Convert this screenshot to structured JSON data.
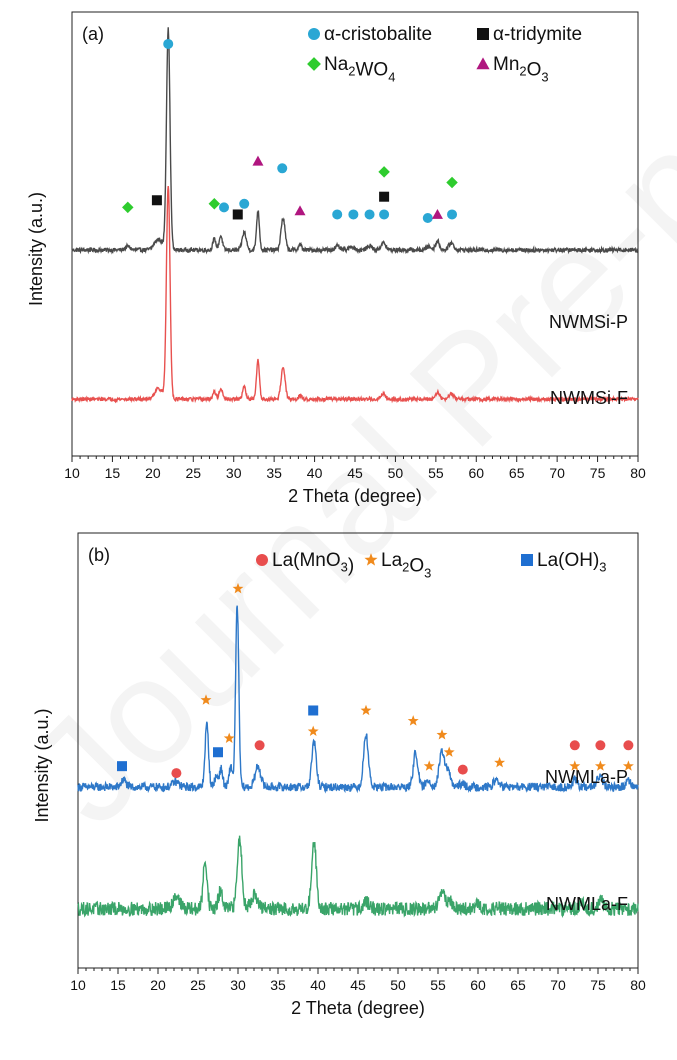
{
  "watermark": "Journal Pre-proofs",
  "chart_data": [
    {
      "type": "line",
      "panel_label": "(a)",
      "xlabel": "2 Theta (degree)",
      "ylabel": "Intensity (a.u.)",
      "xlim": [
        10,
        80
      ],
      "x_ticks": [
        10,
        15,
        20,
        25,
        30,
        35,
        40,
        45,
        50,
        55,
        60,
        65,
        70,
        75,
        80
      ],
      "grid": false,
      "legend_position": "top-right",
      "legend": [
        {
          "shape": "circle",
          "color": "#2aa7d4",
          "text": "α-cristobalite"
        },
        {
          "shape": "square",
          "color": "#111111",
          "text": "α-tridymite"
        },
        {
          "shape": "diamond",
          "color": "#2ecc2e",
          "text": "Na2WO4",
          "parts": [
            [
              "Na",
              ""
            ],
            [
              "2",
              "sub"
            ],
            [
              "WO",
              ""
            ],
            [
              "4",
              "sub"
            ]
          ]
        },
        {
          "shape": "triangle",
          "color": "#b0167f",
          "text": "Mn2O3",
          "parts": [
            [
              "Mn",
              ""
            ],
            [
              "2",
              "sub"
            ],
            [
              "O",
              ""
            ],
            [
              "3",
              "sub"
            ]
          ]
        }
      ],
      "series": [
        {
          "name": "NWMSi-P",
          "color": "#4a4a4a",
          "baseline": 0.58,
          "noise": 0.006,
          "peaks": [
            [
              16.9,
              0.01,
              0.3
            ],
            [
              20.7,
              0.03,
              0.5
            ],
            [
              21.9,
              0.62,
              0.22
            ],
            [
              27.6,
              0.03,
              0.2
            ],
            [
              28.4,
              0.04,
              0.2
            ],
            [
              31.3,
              0.05,
              0.25
            ],
            [
              33.0,
              0.11,
              0.18
            ],
            [
              36.1,
              0.09,
              0.25
            ],
            [
              38.2,
              0.015,
              0.2
            ],
            [
              42.8,
              0.01,
              0.3
            ],
            [
              44.6,
              0.01,
              0.3
            ],
            [
              46.8,
              0.012,
              0.3
            ],
            [
              48.5,
              0.02,
              0.3
            ],
            [
              54.1,
              0.01,
              0.3
            ],
            [
              55.2,
              0.025,
              0.25
            ],
            [
              56.9,
              0.02,
              0.3
            ]
          ]
        },
        {
          "name": "NWMSi-F",
          "color": "#e8514f",
          "baseline": 0.16,
          "noise": 0.005,
          "peaks": [
            [
              21.9,
              0.6,
              0.22
            ],
            [
              20.7,
              0.03,
              0.5
            ],
            [
              27.6,
              0.02,
              0.2
            ],
            [
              28.4,
              0.03,
              0.2
            ],
            [
              31.3,
              0.035,
              0.2
            ],
            [
              33.0,
              0.11,
              0.18
            ],
            [
              36.1,
              0.09,
              0.25
            ],
            [
              38.2,
              0.01,
              0.2
            ],
            [
              48.5,
              0.015,
              0.3
            ],
            [
              55.2,
              0.02,
              0.25
            ],
            [
              56.9,
              0.015,
              0.3
            ]
          ]
        }
      ],
      "markers": [
        {
          "x": 21.9,
          "y": 1.16,
          "shape": "circle",
          "color": "#2aa7d4"
        },
        {
          "x": 16.9,
          "y": 0.7,
          "shape": "diamond",
          "color": "#2ecc2e"
        },
        {
          "x": 20.5,
          "y": 0.72,
          "shape": "square",
          "color": "#111111"
        },
        {
          "x": 27.6,
          "y": 0.71,
          "shape": "diamond",
          "color": "#2ecc2e"
        },
        {
          "x": 28.8,
          "y": 0.7,
          "shape": "circle",
          "color": "#2aa7d4"
        },
        {
          "x": 30.5,
          "y": 0.68,
          "shape": "square",
          "color": "#111111"
        },
        {
          "x": 31.3,
          "y": 0.71,
          "shape": "circle",
          "color": "#2aa7d4"
        },
        {
          "x": 33.0,
          "y": 0.83,
          "shape": "triangle",
          "color": "#b0167f"
        },
        {
          "x": 36.0,
          "y": 0.81,
          "shape": "circle",
          "color": "#2aa7d4"
        },
        {
          "x": 38.2,
          "y": 0.69,
          "shape": "triangle",
          "color": "#b0167f"
        },
        {
          "x": 42.8,
          "y": 0.68,
          "shape": "circle",
          "color": "#2aa7d4"
        },
        {
          "x": 44.8,
          "y": 0.68,
          "shape": "circle",
          "color": "#2aa7d4"
        },
        {
          "x": 46.8,
          "y": 0.68,
          "shape": "circle",
          "color": "#2aa7d4"
        },
        {
          "x": 48.6,
          "y": 0.8,
          "shape": "diamond",
          "color": "#2ecc2e"
        },
        {
          "x": 48.6,
          "y": 0.73,
          "shape": "square",
          "color": "#111111"
        },
        {
          "x": 48.6,
          "y": 0.68,
          "shape": "circle",
          "color": "#2aa7d4"
        },
        {
          "x": 54.0,
          "y": 0.67,
          "shape": "circle",
          "color": "#2aa7d4"
        },
        {
          "x": 55.2,
          "y": 0.68,
          "shape": "triangle",
          "color": "#b0167f"
        },
        {
          "x": 57.0,
          "y": 0.77,
          "shape": "diamond",
          "color": "#2ecc2e"
        },
        {
          "x": 57.0,
          "y": 0.68,
          "shape": "circle",
          "color": "#2aa7d4"
        }
      ]
    },
    {
      "type": "line",
      "panel_label": "(b)",
      "xlabel": "2 Theta (degree)",
      "ylabel": "Intensity (a.u.)",
      "xlim": [
        10,
        80
      ],
      "x_ticks": [
        10,
        15,
        20,
        25,
        30,
        35,
        40,
        45,
        50,
        55,
        60,
        65,
        70,
        75,
        80
      ],
      "grid": false,
      "legend_position": "top-right",
      "legend": [
        {
          "shape": "circle",
          "color": "#e84d4d",
          "text": "La(MnO3)",
          "parts": [
            [
              "La(MnO",
              ""
            ],
            [
              "3",
              "sub"
            ],
            [
              ")",
              ""
            ]
          ]
        },
        {
          "shape": "star",
          "color": "#f08a1c",
          "text": "La2O3",
          "parts": [
            [
              "La",
              ""
            ],
            [
              "2",
              "sub"
            ],
            [
              "O",
              ""
            ],
            [
              "3",
              "sub"
            ]
          ]
        },
        {
          "shape": "square",
          "color": "#1f6fd1",
          "text": "La(OH)3",
          "parts": [
            [
              "La(OH)",
              ""
            ],
            [
              "3",
              "sub"
            ]
          ]
        }
      ],
      "series": [
        {
          "name": "NWMLa-P",
          "color": "#2e78c8",
          "baseline": 0.52,
          "noise": 0.012,
          "peaks": [
            [
              15.7,
              0.02,
              0.3
            ],
            [
              22.2,
              0.015,
              0.4
            ],
            [
              26.1,
              0.18,
              0.22
            ],
            [
              27.3,
              0.03,
              0.25
            ],
            [
              27.9,
              0.05,
              0.2
            ],
            [
              29.1,
              0.06,
              0.2
            ],
            [
              29.9,
              0.52,
              0.2
            ],
            [
              32.5,
              0.06,
              0.35
            ],
            [
              39.5,
              0.13,
              0.28
            ],
            [
              46.0,
              0.15,
              0.3
            ],
            [
              52.2,
              0.1,
              0.28
            ],
            [
              53.8,
              0.02,
              0.3
            ],
            [
              55.5,
              0.1,
              0.35
            ],
            [
              56.3,
              0.04,
              0.3
            ],
            [
              58.0,
              0.01,
              0.3
            ],
            [
              62.3,
              0.02,
              0.35
            ],
            [
              72.1,
              0.02,
              0.3
            ],
            [
              75.2,
              0.03,
              0.35
            ],
            [
              78.8,
              0.02,
              0.3
            ]
          ]
        },
        {
          "name": "NWMLa-F",
          "color": "#3aa469",
          "baseline": 0.17,
          "noise": 0.02,
          "peaks": [
            [
              22.3,
              0.04,
              0.4
            ],
            [
              25.9,
              0.14,
              0.25
            ],
            [
              27.8,
              0.05,
              0.25
            ],
            [
              30.2,
              0.2,
              0.3
            ],
            [
              32.0,
              0.04,
              0.4
            ],
            [
              39.5,
              0.19,
              0.3
            ],
            [
              46.0,
              0.02,
              0.4
            ],
            [
              55.5,
              0.05,
              0.4
            ],
            [
              56.5,
              0.02,
              0.3
            ],
            [
              60.0,
              0.01,
              0.4
            ],
            [
              73.0,
              0.015,
              0.4
            ],
            [
              75.5,
              0.02,
              0.4
            ]
          ]
        }
      ],
      "markers": [
        {
          "x": 15.5,
          "y": 0.58,
          "shape": "square",
          "color": "#1f6fd1"
        },
        {
          "x": 22.3,
          "y": 0.56,
          "shape": "circle",
          "color": "#e84d4d"
        },
        {
          "x": 26.0,
          "y": 0.77,
          "shape": "star",
          "color": "#f08a1c"
        },
        {
          "x": 27.5,
          "y": 0.62,
          "shape": "square",
          "color": "#1f6fd1"
        },
        {
          "x": 28.9,
          "y": 0.66,
          "shape": "star",
          "color": "#f08a1c"
        },
        {
          "x": 30.0,
          "y": 1.09,
          "shape": "star",
          "color": "#f08a1c"
        },
        {
          "x": 32.7,
          "y": 0.64,
          "shape": "circle",
          "color": "#e84d4d"
        },
        {
          "x": 39.4,
          "y": 0.74,
          "shape": "square",
          "color": "#1f6fd1"
        },
        {
          "x": 39.4,
          "y": 0.68,
          "shape": "star",
          "color": "#f08a1c"
        },
        {
          "x": 46.0,
          "y": 0.74,
          "shape": "star",
          "color": "#f08a1c"
        },
        {
          "x": 51.9,
          "y": 0.71,
          "shape": "star",
          "color": "#f08a1c"
        },
        {
          "x": 53.9,
          "y": 0.58,
          "shape": "star",
          "color": "#f08a1c"
        },
        {
          "x": 55.5,
          "y": 0.67,
          "shape": "star",
          "color": "#f08a1c"
        },
        {
          "x": 56.4,
          "y": 0.62,
          "shape": "star",
          "color": "#f08a1c"
        },
        {
          "x": 58.1,
          "y": 0.57,
          "shape": "circle",
          "color": "#e84d4d"
        },
        {
          "x": 62.7,
          "y": 0.59,
          "shape": "star",
          "color": "#f08a1c"
        },
        {
          "x": 72.1,
          "y": 0.64,
          "shape": "circle",
          "color": "#e84d4d"
        },
        {
          "x": 72.1,
          "y": 0.58,
          "shape": "star",
          "color": "#f08a1c"
        },
        {
          "x": 75.3,
          "y": 0.64,
          "shape": "circle",
          "color": "#e84d4d"
        },
        {
          "x": 75.3,
          "y": 0.58,
          "shape": "star",
          "color": "#f08a1c"
        },
        {
          "x": 78.8,
          "y": 0.64,
          "shape": "circle",
          "color": "#e84d4d"
        },
        {
          "x": 78.8,
          "y": 0.58,
          "shape": "star",
          "color": "#f08a1c"
        }
      ]
    }
  ]
}
